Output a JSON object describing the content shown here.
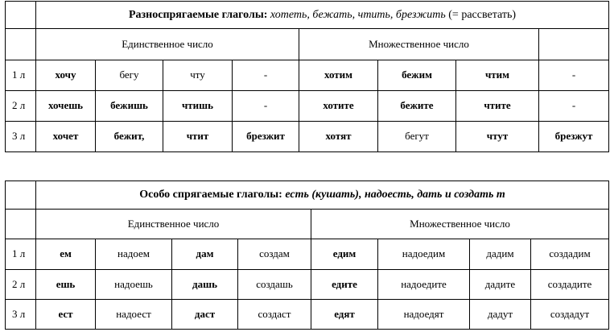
{
  "table1": {
    "title_bold": "Разноспрягаемые глаголы:",
    "title_italic": "хотеть, бежать, чтить, брезжить",
    "title_rest": "(= рассветать)",
    "singular_header": "Единственное число",
    "plural_header": "Множественное число",
    "rows": [
      {
        "person": "1 л",
        "cells": [
          "хочу",
          "бегу",
          "чту",
          "-",
          "хотим",
          "бежим",
          "чтим",
          "-"
        ]
      },
      {
        "person": "2 л",
        "cells": [
          "хочешь",
          "бежишь",
          "чтишь",
          "-",
          "хотите",
          "бежите",
          "чтите",
          "-"
        ]
      },
      {
        "person": "3 л",
        "cells": [
          "хочет",
          "бежит,",
          "чтит",
          "брезжит",
          "хотят",
          "бегут",
          "чтут",
          "брезжут"
        ]
      }
    ]
  },
  "table2": {
    "title_bold": "Особо спрягаемые глаголы:",
    "title_italic": "есть (кушать), надоесть, дать и создать т",
    "singular_header": "Единственное число",
    "plural_header": "Множественное число",
    "rows": [
      {
        "person": "1 л",
        "cells": [
          "ем",
          "надоем",
          "дам",
          "создам",
          "едим",
          "надоедим",
          "дадим",
          "создадим"
        ]
      },
      {
        "person": "2 л",
        "cells": [
          "ешь",
          "надоешь",
          "дашь",
          "создашь",
          "едите",
          "надоедите",
          "дадите",
          "создадите"
        ]
      },
      {
        "person": "3 л",
        "cells": [
          "ест",
          "надоест",
          "даст",
          "создаст",
          "едят",
          "надоедят",
          "дадут",
          "создадут"
        ]
      }
    ]
  }
}
